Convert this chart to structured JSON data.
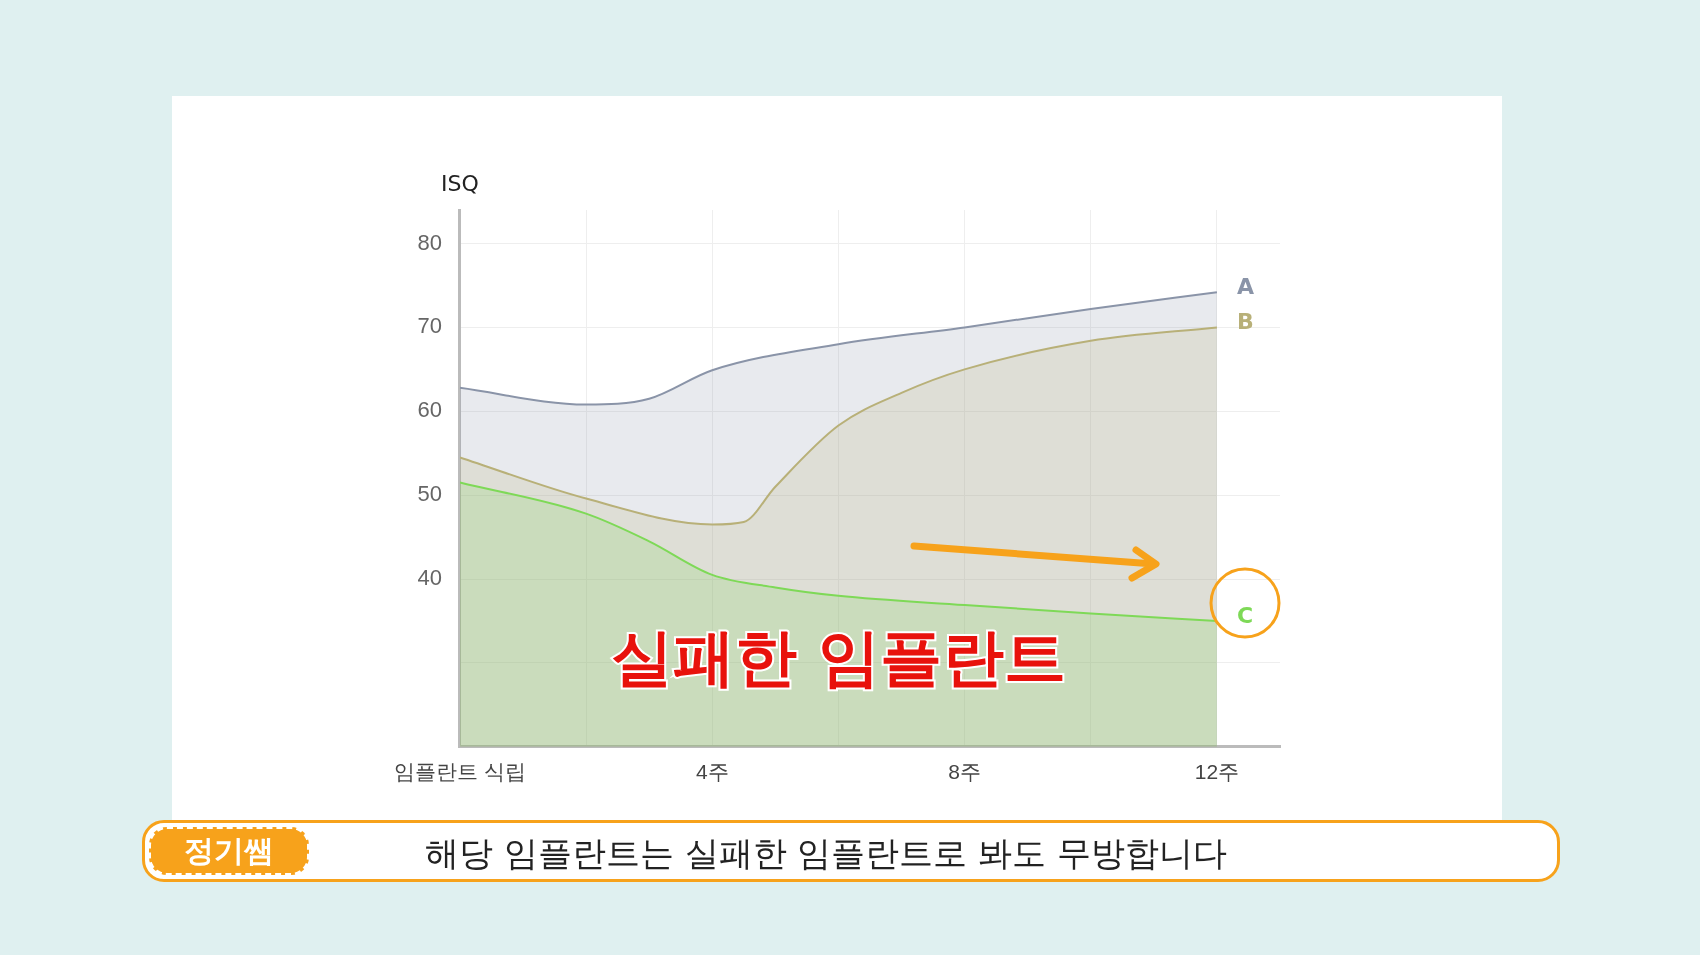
{
  "chart_data": {
    "type": "area",
    "ylabel": "ISQ",
    "xlim": [
      0,
      13
    ],
    "xticks": [
      {
        "value": 0,
        "label": "임플란트 식립"
      },
      {
        "value": 2,
        "label": null
      },
      {
        "value": 4,
        "label": "4주"
      },
      {
        "value": 6,
        "label": null
      },
      {
        "value": 8,
        "label": "8주"
      },
      {
        "value": 10,
        "label": null
      },
      {
        "value": 12,
        "label": "12주"
      }
    ],
    "ylim": [
      20,
      84
    ],
    "yticks": [
      {
        "value": 30,
        "label": null
      },
      40,
      50,
      60,
      70,
      80
    ],
    "grid": true,
    "legend": false,
    "marker": "none",
    "series": [
      {
        "name": "A",
        "color": "#8a94a8",
        "x": [
          0,
          2,
          3,
          4,
          6,
          8,
          10,
          12
        ],
        "values": [
          62.8,
          60.8,
          61.5,
          64.9,
          68,
          70,
          72.2,
          74.2
        ]
      },
      {
        "name": "B",
        "color": "#b8b078",
        "x": [
          0,
          2,
          4,
          4.5,
          5,
          6,
          7,
          8,
          10,
          12
        ],
        "values": [
          54.5,
          49.6,
          46.5,
          46.8,
          51,
          58.3,
          62.2,
          65,
          68.4,
          70
        ]
      },
      {
        "name": "C",
        "color": "#7ed957",
        "x": [
          0,
          2,
          3,
          4,
          5,
          6,
          8,
          10,
          12
        ],
        "values": [
          51.5,
          47.8,
          44.5,
          40.5,
          39,
          38,
          36.9,
          35.9,
          35
        ]
      }
    ],
    "annotations": [
      "실패한 임플란트",
      "정기쌤",
      "해당 임플란트는 실패한 임플란트로 봐도 무방합니다"
    ]
  }
}
